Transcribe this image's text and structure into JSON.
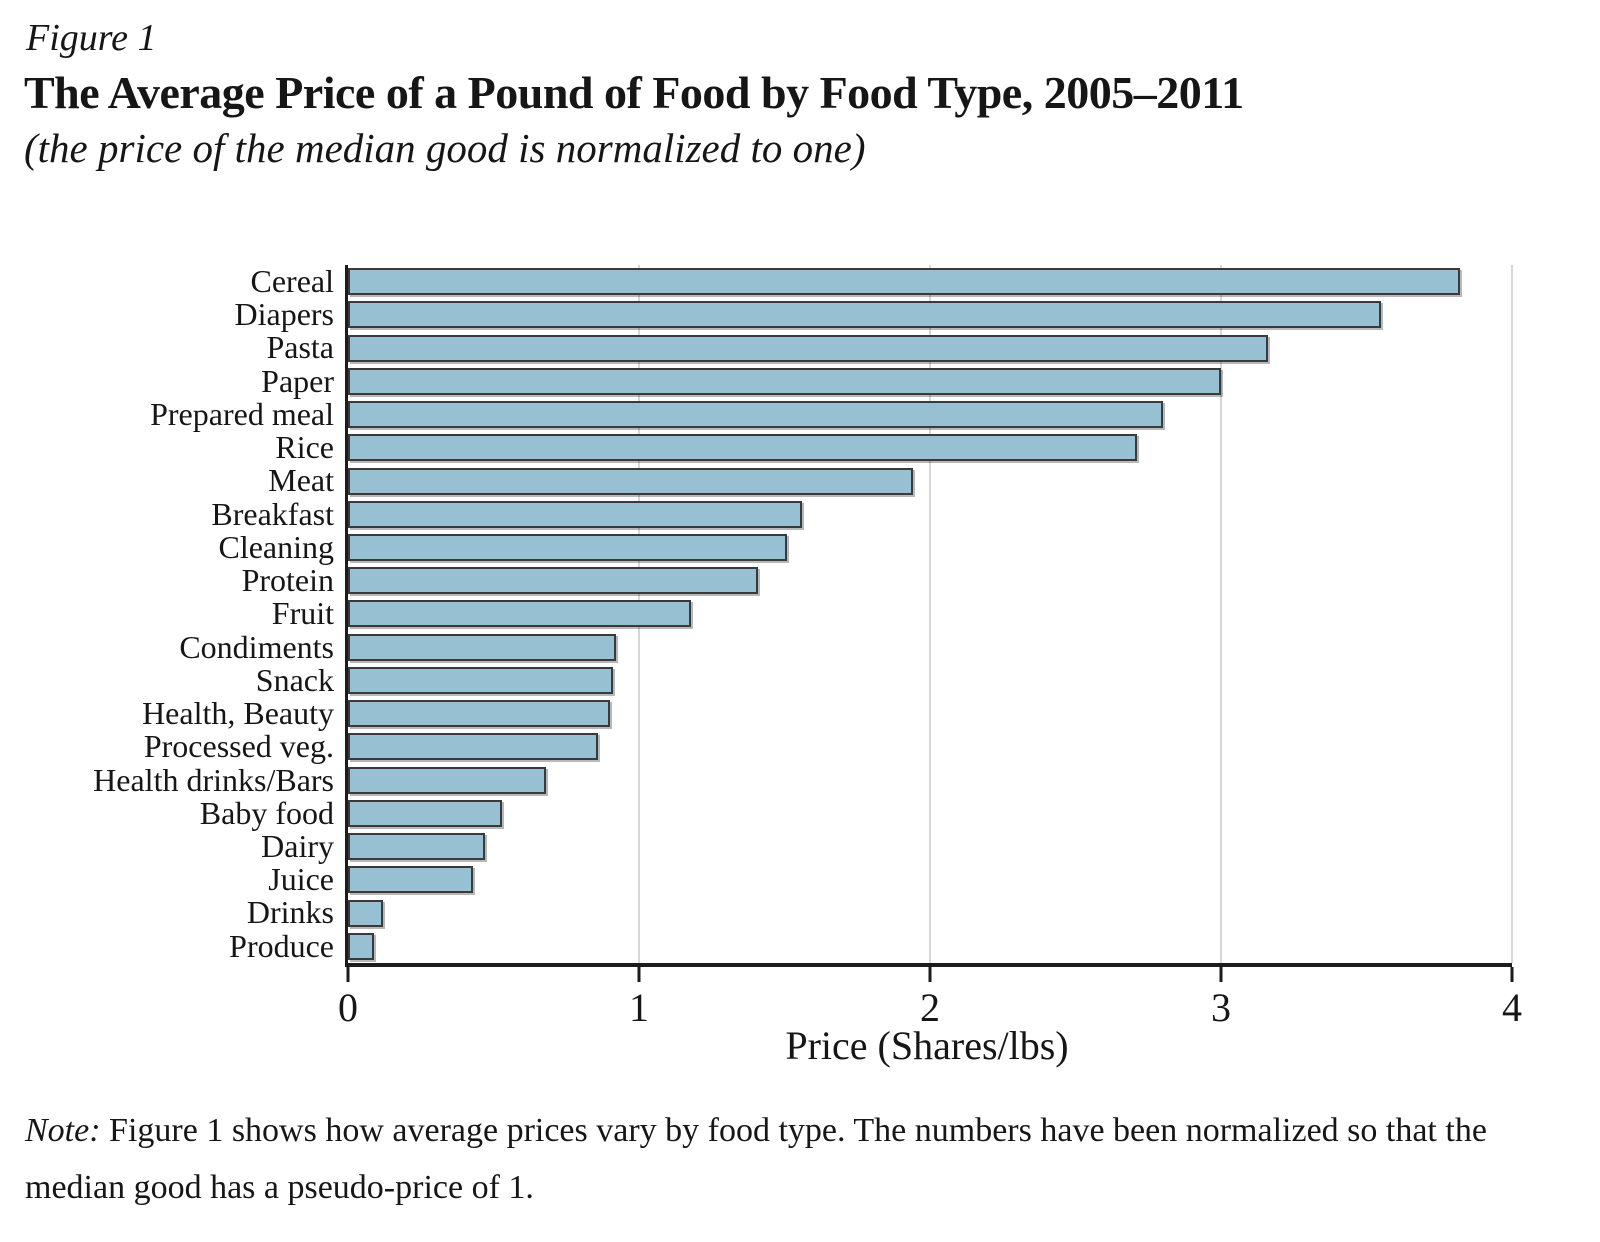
{
  "figure": {
    "label": "Figure 1",
    "title": "The Average Price of a Pound of Food by Food Type, 2005–2011",
    "subtitle": "(the price of the median good is normalized to one)"
  },
  "chart_data": {
    "type": "bar",
    "orientation": "horizontal",
    "categories": [
      "Cereal",
      "Diapers",
      "Pasta",
      "Paper",
      "Prepared meal",
      "Rice",
      "Meat",
      "Breakfast",
      "Cleaning",
      "Protein",
      "Fruit",
      "Condiments",
      "Snack",
      "Health, Beauty",
      "Processed veg.",
      "Health drinks/Bars",
      "Baby food",
      "Dairy",
      "Juice",
      "Drinks",
      "Produce"
    ],
    "values": [
      3.82,
      3.55,
      3.16,
      3.0,
      2.8,
      2.71,
      1.94,
      1.56,
      1.51,
      1.41,
      1.18,
      0.92,
      0.91,
      0.9,
      0.86,
      0.68,
      0.53,
      0.47,
      0.43,
      0.12,
      0.09
    ],
    "xlabel": "Price (Shares/lbs)",
    "x_ticks": [
      0,
      1,
      2,
      3,
      4
    ],
    "xlim": [
      0,
      4
    ],
    "grid": "vertical gridlines at each x tick",
    "legend": "none",
    "bar_color": "#97c1d3",
    "bar_border_color": "#3a3a3a",
    "axis_color": "#1c1c1c",
    "gridline_color": "#d7d7d7"
  },
  "note": {
    "prefix": "Note:",
    "text": " Figure 1 shows how average prices vary by food type. The numbers have been normalized so that the median good has a pseudo-price of 1."
  }
}
